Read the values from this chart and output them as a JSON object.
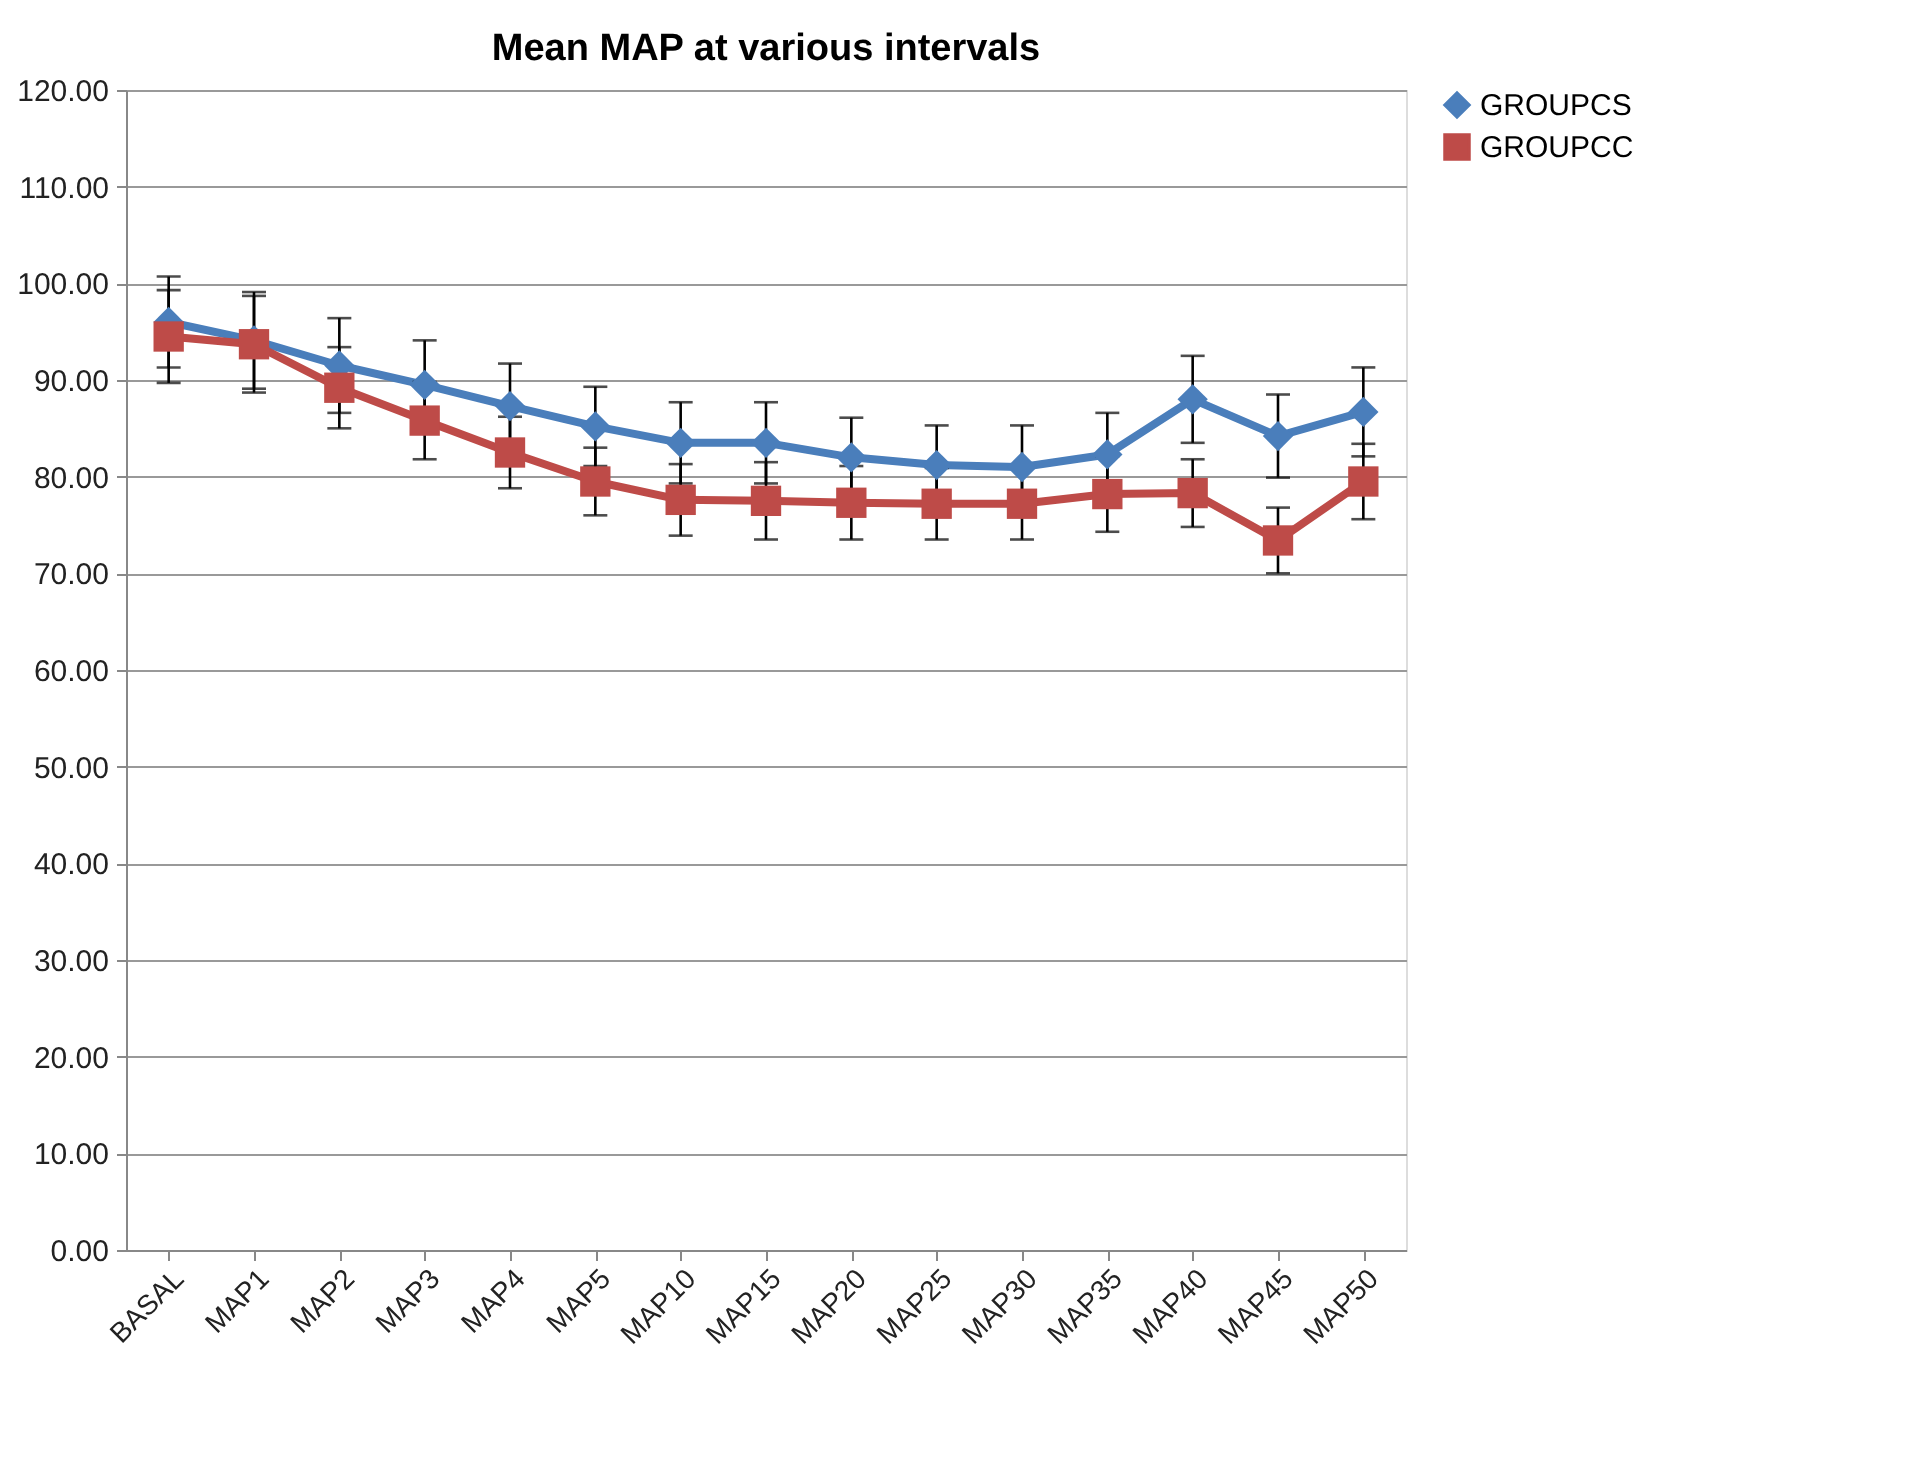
{
  "chart_data": {
    "type": "line",
    "title": "Mean MAP at various intervals",
    "categories": [
      "BASAL",
      "MAP1",
      "MAP2",
      "MAP3",
      "MAP4",
      "MAP5",
      "MAP10",
      "MAP15",
      "MAP20",
      "MAP25",
      "MAP30",
      "MAP35",
      "MAP40",
      "MAP45",
      "MAP50"
    ],
    "series": [
      {
        "name": "GROUPCS",
        "color": "#4a7ebb",
        "marker": "diamond",
        "values": [
          96.0,
          94.1,
          91.5,
          89.5,
          87.3,
          85.2,
          83.5,
          83.5,
          82.0,
          81.2,
          81.0,
          82.3,
          88.0,
          84.2,
          86.7
        ],
        "errors": [
          4.7,
          5.0,
          4.9,
          4.6,
          4.4,
          4.1,
          4.2,
          4.2,
          4.1,
          4.1,
          4.3,
          4.3,
          4.5,
          4.3,
          4.6
        ]
      },
      {
        "name": "GROUPCC",
        "color": "#be4b48",
        "marker": "square",
        "values": [
          94.5,
          93.7,
          89.2,
          85.8,
          82.5,
          79.5,
          77.6,
          77.5,
          77.3,
          77.2,
          77.2,
          78.2,
          78.3,
          73.4,
          79.5
        ],
        "errors": [
          4.8,
          5.0,
          4.2,
          4.0,
          3.7,
          3.5,
          3.7,
          4.0,
          3.8,
          3.7,
          3.7,
          3.9,
          3.5,
          3.4,
          3.9
        ]
      }
    ],
    "ylim": [
      0,
      120
    ],
    "yticks": [
      {
        "value": 0,
        "label": "0.00"
      },
      {
        "value": 10,
        "label": "10.00"
      },
      {
        "value": 20,
        "label": "20.00"
      },
      {
        "value": 30,
        "label": "30.00"
      },
      {
        "value": 40,
        "label": "40.00"
      },
      {
        "value": 50,
        "label": "50.00"
      },
      {
        "value": 60,
        "label": "60.00"
      },
      {
        "value": 70,
        "label": "70.00"
      },
      {
        "value": 80,
        "label": "80.00"
      },
      {
        "value": 90,
        "label": "90.00"
      },
      {
        "value": 100,
        "label": "100.00"
      },
      {
        "value": 110,
        "label": "110.00"
      },
      {
        "value": 120,
        "label": "120.00"
      }
    ],
    "grid": "y",
    "legend": "right",
    "line_style": "solid"
  }
}
